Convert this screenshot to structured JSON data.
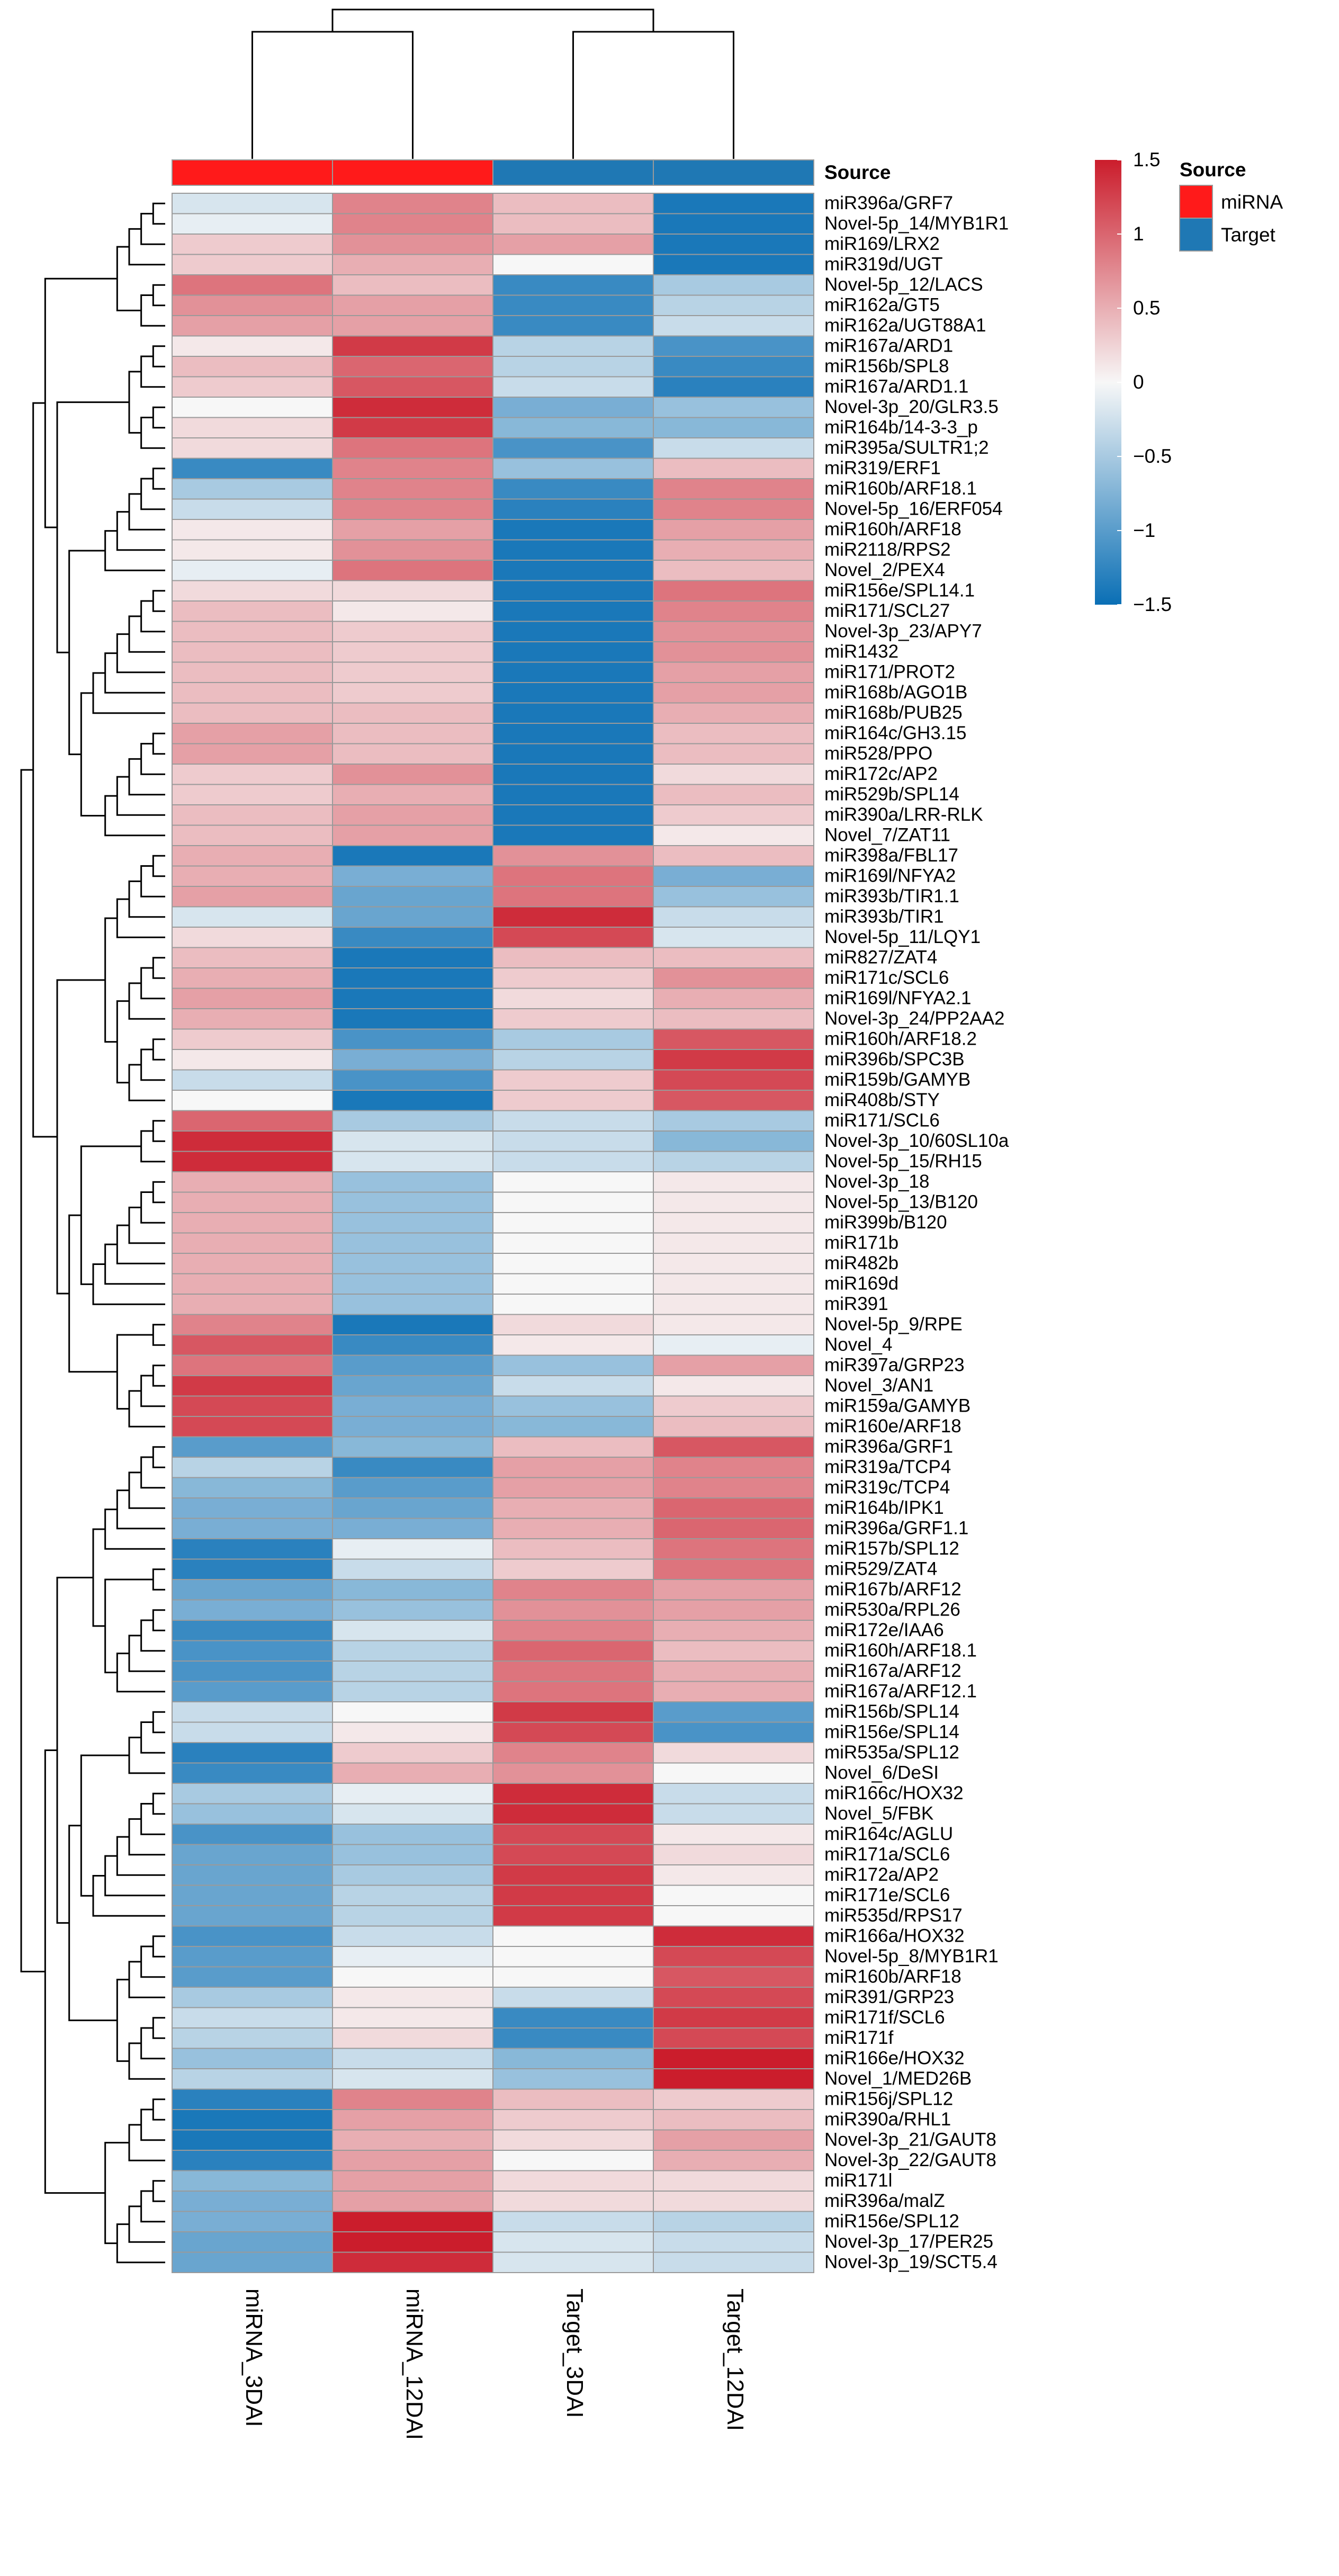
{
  "chart_data": {
    "type": "heatmap",
    "columns": [
      "miRNA_3DAI",
      "miRNA_12DAI",
      "Target_3DAI",
      "Target_12DAI"
    ],
    "annotation": {
      "label": "Source",
      "values": [
        "miRNA",
        "miRNA",
        "Target",
        "Target"
      ]
    },
    "annotation_legend": {
      "title": "Source",
      "items": [
        {
          "label": "miRNA",
          "color": "#FF1A1A"
        },
        {
          "label": "Target",
          "color": "#1F78B4"
        }
      ]
    },
    "colorbar": {
      "ticks": [
        "1.5",
        "1",
        "0.5",
        "0",
        "−0.5",
        "−1",
        "−1.5"
      ],
      "range": [
        -1.5,
        1.5
      ],
      "low_color": "#0A6FB5",
      "mid_color": "#F7F7F7",
      "high_color": "#CB1D2C"
    },
    "rows": [
      {
        "label": "miR396a/GRF7",
        "values": [
          -0.2,
          0.8,
          0.4,
          -1.4
        ]
      },
      {
        "label": "Novel-5p_14/MYB1R1",
        "values": [
          -0.1,
          0.8,
          0.4,
          -1.4
        ]
      },
      {
        "label": "miR169/LRX2",
        "values": [
          0.3,
          0.7,
          0.6,
          -1.4
        ]
      },
      {
        "label": "miR319d/UGT",
        "values": [
          0.3,
          0.5,
          0.0,
          -1.4
        ]
      },
      {
        "label": "Novel-5p_12/LACS",
        "values": [
          0.9,
          0.4,
          -1.2,
          -0.5
        ]
      },
      {
        "label": "miR162a/GT5",
        "values": [
          0.7,
          0.6,
          -1.2,
          -0.4
        ]
      },
      {
        "label": "miR162a/UGT88A1",
        "values": [
          0.6,
          0.6,
          -1.2,
          -0.3
        ]
      },
      {
        "label": "miR167a/ARD1",
        "values": [
          0.1,
          1.3,
          -0.4,
          -1.1
        ]
      },
      {
        "label": "miR156b/SPL8",
        "values": [
          0.4,
          1.0,
          -0.4,
          -1.2
        ]
      },
      {
        "label": "miR167a/ARD1.1",
        "values": [
          0.3,
          1.1,
          -0.3,
          -1.3
        ]
      },
      {
        "label": "Novel-3p_20/GLR3.5",
        "values": [
          0.0,
          1.4,
          -0.8,
          -0.6
        ]
      },
      {
        "label": "miR164b/14-3-3_p",
        "values": [
          0.2,
          1.3,
          -0.7,
          -0.7
        ]
      },
      {
        "label": "miR395a/SULTR1;2",
        "values": [
          0.2,
          0.9,
          -1.1,
          -0.3
        ]
      },
      {
        "label": "miR319/ERF1",
        "values": [
          -1.2,
          0.8,
          -0.6,
          0.4
        ]
      },
      {
        "label": "miR160b/ARF18.1",
        "values": [
          -0.5,
          0.8,
          -1.2,
          0.8
        ]
      },
      {
        "label": "Novel-5p_16/ERF054",
        "values": [
          -0.3,
          0.8,
          -1.3,
          0.8
        ]
      },
      {
        "label": "miR160h/ARF18",
        "values": [
          0.1,
          0.6,
          -1.4,
          0.6
        ]
      },
      {
        "label": "miR2118/RPS2",
        "values": [
          0.1,
          0.7,
          -1.4,
          0.5
        ]
      },
      {
        "label": "Novel_2/PEX4",
        "values": [
          -0.1,
          0.9,
          -1.4,
          0.4
        ]
      },
      {
        "label": "miR156e/SPL14.1",
        "values": [
          0.2,
          0.2,
          -1.4,
          0.9
        ]
      },
      {
        "label": "miR171/SCL27",
        "values": [
          0.4,
          0.1,
          -1.4,
          0.8
        ]
      },
      {
        "label": "Novel-3p_23/APY7",
        "values": [
          0.4,
          0.3,
          -1.4,
          0.7
        ]
      },
      {
        "label": "miR1432",
        "values": [
          0.4,
          0.3,
          -1.4,
          0.7
        ]
      },
      {
        "label": "miR171/PROT2",
        "values": [
          0.4,
          0.3,
          -1.4,
          0.6
        ]
      },
      {
        "label": "miR168b/AGO1B",
        "values": [
          0.4,
          0.3,
          -1.4,
          0.6
        ]
      },
      {
        "label": "miR168b/PUB25",
        "values": [
          0.4,
          0.4,
          -1.4,
          0.5
        ]
      },
      {
        "label": "miR164c/GH3.15",
        "values": [
          0.6,
          0.4,
          -1.4,
          0.4
        ]
      },
      {
        "label": "miR528/PPO",
        "values": [
          0.6,
          0.4,
          -1.4,
          0.4
        ]
      },
      {
        "label": "miR172c/AP2",
        "values": [
          0.3,
          0.7,
          -1.4,
          0.2
        ]
      },
      {
        "label": "miR529b/SPL14",
        "values": [
          0.3,
          0.5,
          -1.4,
          0.4
        ]
      },
      {
        "label": "miR390a/LRR-RLK",
        "values": [
          0.4,
          0.6,
          -1.4,
          0.3
        ]
      },
      {
        "label": "Novel_7/ZAT11",
        "values": [
          0.4,
          0.6,
          -1.4,
          0.1
        ]
      },
      {
        "label": "miR398a/FBL17",
        "values": [
          0.5,
          -1.4,
          0.7,
          0.4
        ]
      },
      {
        "label": "miR169l/NFYA2",
        "values": [
          0.5,
          -0.8,
          0.9,
          -0.8
        ]
      },
      {
        "label": "miR393b/TIR1.1",
        "values": [
          0.6,
          -0.9,
          0.9,
          -0.6
        ]
      },
      {
        "label": "miR393b/TIR1",
        "values": [
          -0.2,
          -0.9,
          1.4,
          -0.3
        ]
      },
      {
        "label": "Novel-5p_11/LQY1",
        "values": [
          0.2,
          -1.2,
          1.2,
          -0.2
        ]
      },
      {
        "label": "miR827/ZAT4",
        "values": [
          0.4,
          -1.4,
          0.4,
          0.4
        ]
      },
      {
        "label": "miR171c/SCL6",
        "values": [
          0.5,
          -1.4,
          0.3,
          0.7
        ]
      },
      {
        "label": "miR169l/NFYA2.1",
        "values": [
          0.6,
          -1.4,
          0.2,
          0.5
        ]
      },
      {
        "label": "Novel-3p_24/PP2AA2",
        "values": [
          0.5,
          -1.4,
          0.3,
          0.4
        ]
      },
      {
        "label": "miR160h/ARF18.2",
        "values": [
          0.3,
          -1.1,
          -0.5,
          1.1
        ]
      },
      {
        "label": "miR396b/SPC3B",
        "values": [
          0.1,
          -0.8,
          -0.4,
          1.3
        ]
      },
      {
        "label": "miR159b/GAMYB",
        "values": [
          -0.3,
          -1.1,
          0.3,
          1.2
        ]
      },
      {
        "label": "miR408b/STY",
        "values": [
          0.0,
          -1.4,
          0.3,
          1.1
        ]
      },
      {
        "label": "miR171/SCL6",
        "values": [
          1.0,
          -0.5,
          -0.3,
          -0.5
        ]
      },
      {
        "label": "Novel-3p_10/60SL10a",
        "values": [
          1.4,
          -0.2,
          -0.3,
          -0.7
        ]
      },
      {
        "label": "Novel-5p_15/RH15",
        "values": [
          1.4,
          -0.2,
          -0.3,
          -0.4
        ]
      },
      {
        "label": "Novel-3p_18",
        "values": [
          0.5,
          -0.6,
          0.0,
          0.1
        ]
      },
      {
        "label": "Novel-5p_13/B120",
        "values": [
          0.5,
          -0.6,
          0.0,
          0.1
        ]
      },
      {
        "label": "miR399b/B120",
        "values": [
          0.5,
          -0.6,
          0.0,
          0.1
        ]
      },
      {
        "label": "miR171b",
        "values": [
          0.5,
          -0.6,
          0.0,
          0.1
        ]
      },
      {
        "label": "miR482b",
        "values": [
          0.5,
          -0.6,
          0.0,
          0.1
        ]
      },
      {
        "label": "miR169d",
        "values": [
          0.5,
          -0.6,
          0.0,
          0.1
        ]
      },
      {
        "label": "miR391",
        "values": [
          0.5,
          -0.6,
          0.0,
          0.1
        ]
      },
      {
        "label": "Novel-5p_9/RPE",
        "values": [
          0.8,
          -1.4,
          0.2,
          0.1
        ]
      },
      {
        "label": "Novel_4",
        "values": [
          1.1,
          -1.2,
          0.1,
          -0.1
        ]
      },
      {
        "label": "miR397a/GRP23",
        "values": [
          0.9,
          -1.0,
          -0.6,
          0.6
        ]
      },
      {
        "label": "Novel_3/AN1",
        "values": [
          1.3,
          -0.9,
          -0.3,
          0.1
        ]
      },
      {
        "label": "miR159a/GAMYB",
        "values": [
          1.2,
          -0.8,
          -0.6,
          0.3
        ]
      },
      {
        "label": "miR160e/ARF18",
        "values": [
          1.2,
          -0.8,
          -0.7,
          0.4
        ]
      },
      {
        "label": "miR396a/GRF1",
        "values": [
          -1.0,
          -0.7,
          0.4,
          1.1
        ]
      },
      {
        "label": "miR319a/TCP4",
        "values": [
          -0.4,
          -1.2,
          0.6,
          0.8
        ]
      },
      {
        "label": "miR319c/TCP4",
        "values": [
          -0.7,
          -1.0,
          0.6,
          0.8
        ]
      },
      {
        "label": "miR164b/IPK1",
        "values": [
          -0.8,
          -0.9,
          0.5,
          1.0
        ]
      },
      {
        "label": "miR396a/GRF1.1",
        "values": [
          -0.8,
          -0.8,
          0.5,
          1.0
        ]
      },
      {
        "label": "miR157b/SPL12",
        "values": [
          -1.3,
          -0.1,
          0.4,
          0.9
        ]
      },
      {
        "label": "miR529/ZAT4",
        "values": [
          -1.3,
          -0.3,
          0.3,
          0.9
        ]
      },
      {
        "label": "miR167b/ARF12",
        "values": [
          -0.9,
          -0.7,
          0.8,
          0.6
        ]
      },
      {
        "label": "miR530a/RPL26",
        "values": [
          -0.8,
          -0.6,
          0.7,
          0.6
        ]
      },
      {
        "label": "miR172e/IAA6",
        "values": [
          -1.2,
          -0.2,
          0.8,
          0.5
        ]
      },
      {
        "label": "miR160h/ARF18.1",
        "values": [
          -1.1,
          -0.4,
          1.0,
          0.4
        ]
      },
      {
        "label": "miR167a/ARF12",
        "values": [
          -1.1,
          -0.4,
          0.9,
          0.5
        ]
      },
      {
        "label": "miR167a/ARF12.1",
        "values": [
          -1.0,
          -0.4,
          0.9,
          0.5
        ]
      },
      {
        "label": "miR156b/SPL14",
        "values": [
          -0.3,
          0.0,
          1.3,
          -1.0
        ]
      },
      {
        "label": "miR156e/SPL14",
        "values": [
          -0.3,
          0.1,
          1.2,
          -1.1
        ]
      },
      {
        "label": "miR535a/SPL12",
        "values": [
          -1.3,
          0.3,
          0.8,
          0.2
        ]
      },
      {
        "label": "Novel_6/DeSI",
        "values": [
          -1.2,
          0.5,
          0.7,
          0.0
        ]
      },
      {
        "label": "miR166c/HOX32",
        "values": [
          -0.5,
          -0.1,
          1.4,
          -0.3
        ]
      },
      {
        "label": "Novel_5/FBK",
        "values": [
          -0.6,
          -0.2,
          1.4,
          -0.3
        ]
      },
      {
        "label": "miR164c/AGLU",
        "values": [
          -1.1,
          -0.6,
          1.2,
          0.1
        ]
      },
      {
        "label": "miR171a/SCL6",
        "values": [
          -0.9,
          -0.6,
          1.2,
          0.2
        ]
      },
      {
        "label": "miR172a/AP2",
        "values": [
          -0.9,
          -0.5,
          1.3,
          0.1
        ]
      },
      {
        "label": "miR171e/SCL6",
        "values": [
          -0.9,
          -0.4,
          1.3,
          0.0
        ]
      },
      {
        "label": "miR535d/RPS17",
        "values": [
          -0.9,
          -0.4,
          1.3,
          0.0
        ]
      },
      {
        "label": "miR166a/HOX32",
        "values": [
          -1.1,
          -0.3,
          0.0,
          1.4
        ]
      },
      {
        "label": "Novel-5p_8/MYB1R1",
        "values": [
          -1.0,
          -0.1,
          0.0,
          1.2
        ]
      },
      {
        "label": "miR160b/ARF18",
        "values": [
          -1.0,
          0.0,
          0.0,
          1.1
        ]
      },
      {
        "label": "miR391/GRP23",
        "values": [
          -0.5,
          0.1,
          -0.3,
          1.2
        ]
      },
      {
        "label": "miR171f/SCL6",
        "values": [
          -0.3,
          0.1,
          -1.2,
          1.3
        ]
      },
      {
        "label": "miR171f",
        "values": [
          -0.4,
          0.2,
          -1.2,
          1.2
        ]
      },
      {
        "label": "miR166e/HOX32",
        "values": [
          -0.6,
          -0.3,
          -0.7,
          1.5
        ]
      },
      {
        "label": "Novel_1/MED26B",
        "values": [
          -0.4,
          -0.2,
          -0.6,
          1.5
        ]
      },
      {
        "label": "miR156j/SPL12",
        "values": [
          -1.3,
          0.8,
          0.4,
          0.3
        ]
      },
      {
        "label": "miR390a/RHL1",
        "values": [
          -1.4,
          0.6,
          0.3,
          0.4
        ]
      },
      {
        "label": "Novel-3p_21/GAUT8",
        "values": [
          -1.4,
          0.5,
          0.2,
          0.6
        ]
      },
      {
        "label": "Novel-3p_22/GAUT8",
        "values": [
          -1.3,
          0.6,
          0.0,
          0.5
        ]
      },
      {
        "label": "miR171l",
        "values": [
          -0.7,
          0.6,
          0.2,
          0.2
        ]
      },
      {
        "label": "miR396a/malZ",
        "values": [
          -0.8,
          0.6,
          0.2,
          0.2
        ]
      },
      {
        "label": "miR156e/SPL12",
        "values": [
          -0.8,
          1.5,
          -0.3,
          -0.4
        ]
      },
      {
        "label": "Novel-3p_17/PER25",
        "values": [
          -0.9,
          1.5,
          -0.2,
          -0.3
        ]
      },
      {
        "label": "Novel-3p_19/SCT5.4",
        "values": [
          -0.9,
          1.4,
          -0.2,
          -0.3
        ]
      }
    ]
  }
}
